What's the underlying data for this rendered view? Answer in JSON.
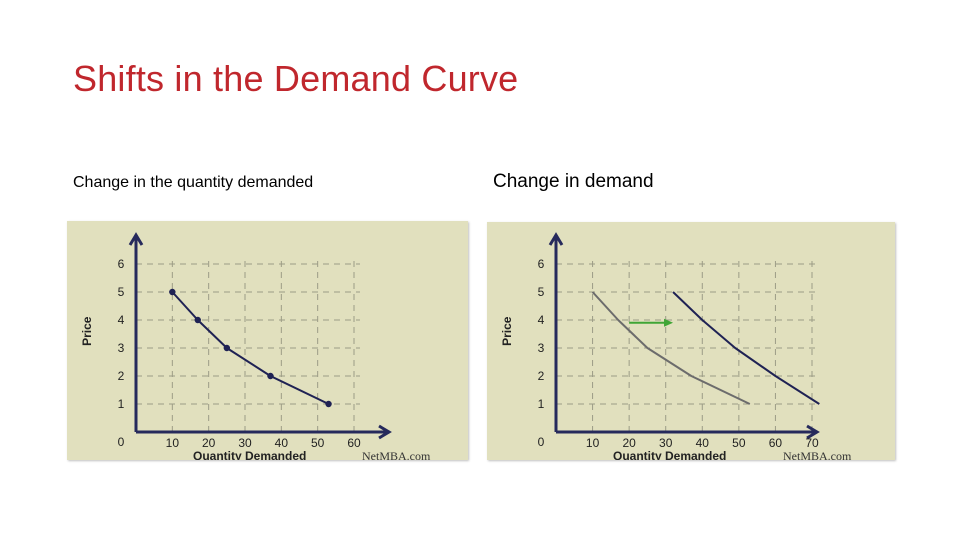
{
  "slide": {
    "title": "Shifts in the Demand Curve",
    "caption_left": "Change in the quantity demanded",
    "caption_right": "Change in demand",
    "title_color": "#c0272d"
  },
  "charts": [
    {
      "type": "line",
      "x_ticks": [
        "0",
        "10",
        "20",
        "30",
        "40",
        "50",
        "60"
      ],
      "y_ticks": [
        "0",
        "1",
        "2",
        "3",
        "4",
        "5",
        "6"
      ],
      "xlabel": "Quantity Demanded",
      "ylabel": "Price",
      "watermark": "NetMBA.com",
      "xlim": [
        0,
        60
      ],
      "ylim": [
        0,
        6
      ],
      "series": [
        {
          "x": [
            10,
            17,
            25,
            37,
            53
          ],
          "y": [
            5,
            4,
            3,
            2,
            1
          ],
          "markers": true,
          "color": "#1f2254"
        }
      ]
    },
    {
      "type": "line",
      "x_ticks": [
        "0",
        "10",
        "20",
        "30",
        "40",
        "50",
        "60",
        "70"
      ],
      "y_ticks": [
        "0",
        "1",
        "2",
        "3",
        "4",
        "5",
        "6"
      ],
      "xlabel": "Quantity Demanded",
      "ylabel": "Price",
      "watermark": "NetMBA.com",
      "xlim": [
        0,
        70
      ],
      "ylim": [
        0,
        6
      ],
      "series": [
        {
          "x": [
            10,
            17,
            25,
            37,
            53
          ],
          "y": [
            5,
            4,
            3,
            2,
            1
          ],
          "markers": false,
          "color": "#6c6c6c"
        },
        {
          "x": [
            32,
            40,
            49,
            60,
            72
          ],
          "y": [
            5,
            4,
            3,
            2,
            1
          ],
          "markers": false,
          "color": "#1f2254"
        }
      ],
      "shift_arrow": {
        "from": [
          20,
          3.9
        ],
        "to": [
          32,
          3.9
        ],
        "color": "#3fa535"
      }
    }
  ]
}
